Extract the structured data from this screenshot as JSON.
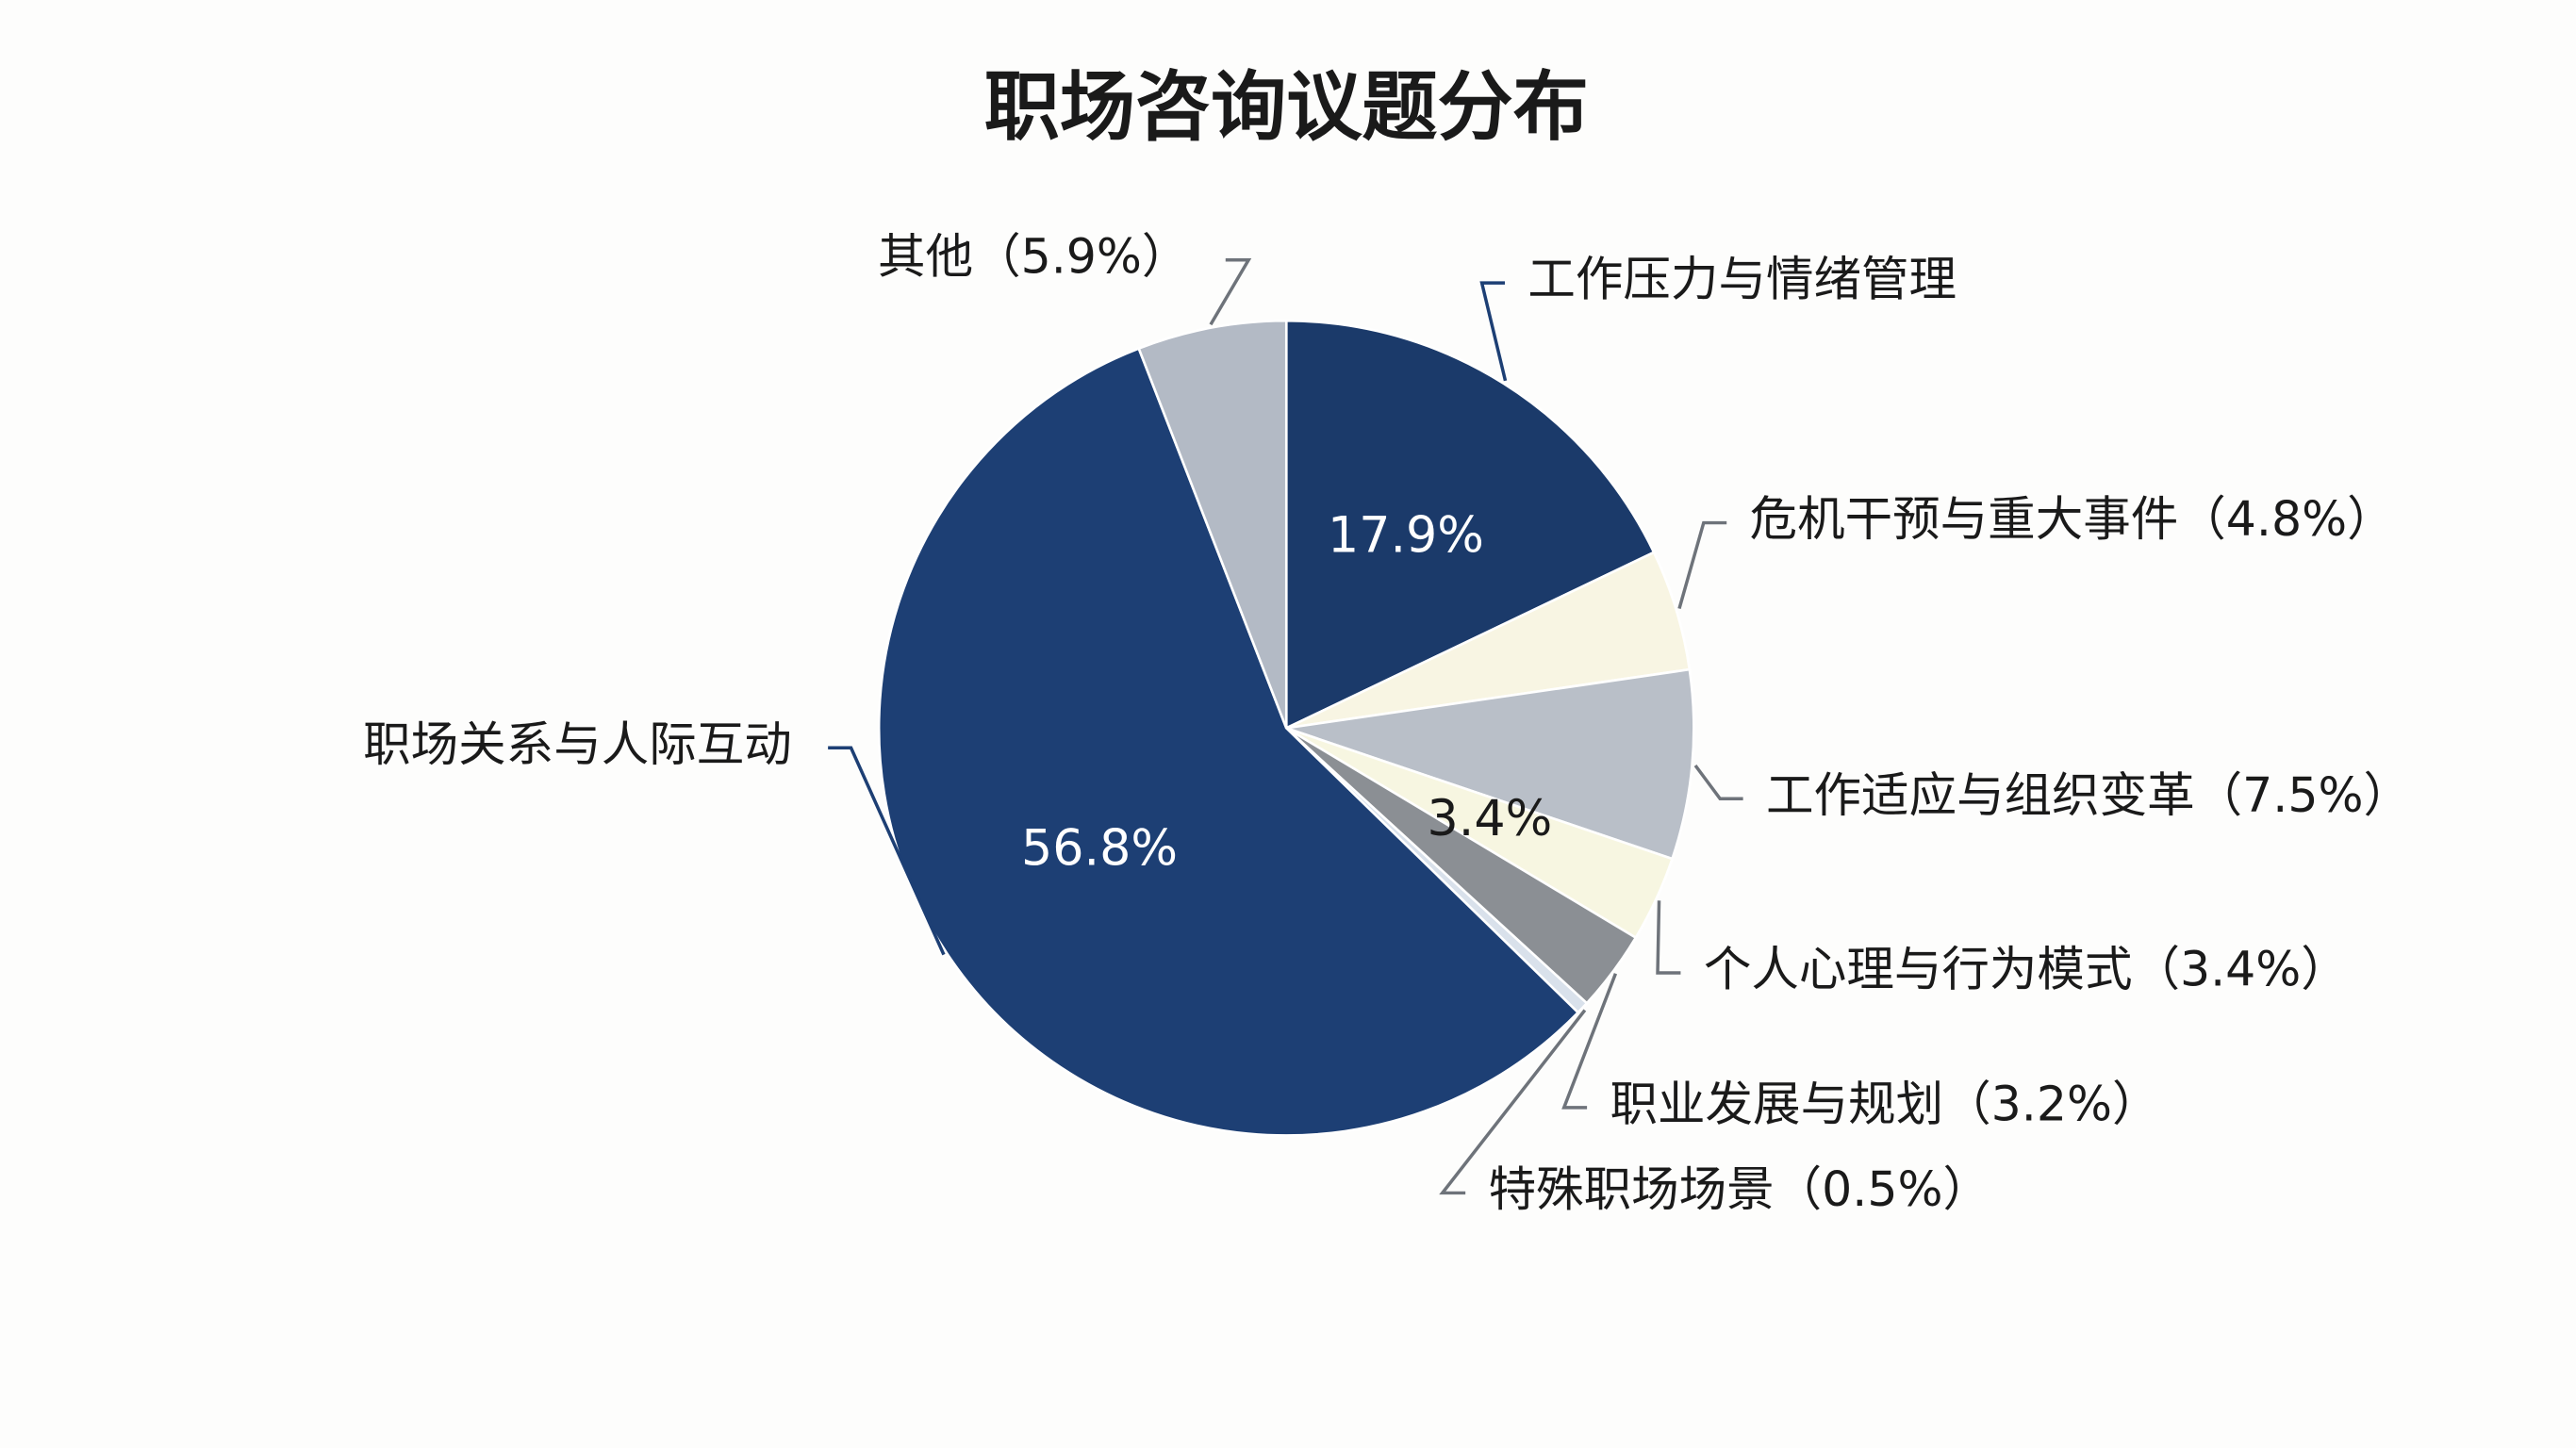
{
  "chart_data": {
    "type": "pie",
    "title": "职场咨询议题分布",
    "categories": [
      "工作压力与情绪管理",
      "危机干预与重大事件（4.8%）",
      "工作适应与组织变革（7.5%）",
      "个人心理与行为模式（3.4%）",
      "职业发展与规划（3.2%）",
      "特殊职场场景（0.5%）",
      "职场关系与人际互动",
      "其他（5.9%）"
    ],
    "values": [
      17.9,
      4.8,
      7.5,
      3.4,
      3.2,
      0.5,
      56.8,
      5.9
    ],
    "value_labels": [
      "17.9%",
      null,
      null,
      "3.4%",
      null,
      null,
      "56.8%",
      null
    ],
    "colors": [
      "#1b3a6a",
      "#f8f5e3",
      "#b9bfc8",
      "#f7f6e1",
      "#8b8f94",
      "#d9e1eb",
      "#1d3f74",
      "#b3bac5"
    ]
  }
}
